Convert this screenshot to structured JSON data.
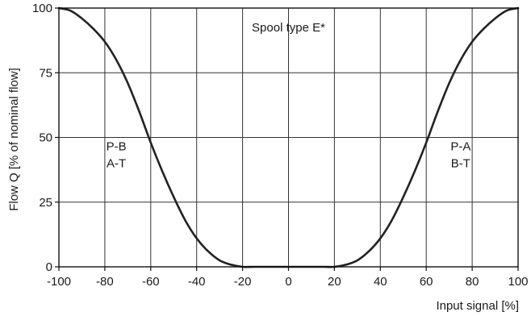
{
  "chart_data": {
    "type": "line",
    "title": "",
    "xlabel": "Input signal [%]",
    "ylabel": "Flow Q [% of nominal flow]",
    "xlim": [
      -100,
      100
    ],
    "ylim": [
      0,
      100
    ],
    "x_ticks": [
      "-100",
      "-80",
      "-60",
      "-40",
      "-20",
      "0",
      "20",
      "40",
      "60",
      "80",
      "100"
    ],
    "y_ticks": [
      "0",
      "25",
      "50",
      "75",
      "100"
    ],
    "grid": true,
    "series": [
      {
        "color": "#222222",
        "x": [
          -100,
          -95,
          -90,
          -85,
          -80,
          -75,
          -70,
          -65,
          -60,
          -55,
          -50,
          -45,
          -40,
          -35,
          -30,
          -25,
          -20,
          -15,
          -10,
          -5,
          0,
          5,
          10,
          15,
          20,
          25,
          30,
          35,
          40,
          45,
          50,
          55,
          60,
          65,
          70,
          75,
          80,
          85,
          90,
          95,
          100
        ],
        "y": [
          100,
          99,
          96,
          92,
          87,
          80,
          71,
          60,
          48,
          37,
          27,
          18,
          11,
          6,
          2.5,
          0.8,
          0,
          0,
          0,
          0,
          0,
          0,
          0,
          0,
          0,
          0.8,
          2.5,
          6,
          11,
          18,
          27,
          37,
          48,
          60,
          71,
          80,
          87,
          92,
          96,
          99,
          100
        ]
      }
    ],
    "annotations": [
      {
        "text": "Spool type E*",
        "x": 0,
        "y": 91
      },
      {
        "lines": [
          "P-B",
          "A-T"
        ],
        "x": -75,
        "y": 45
      },
      {
        "lines": [
          "P-A",
          "B-T"
        ],
        "x": 75,
        "y": 45
      }
    ]
  }
}
